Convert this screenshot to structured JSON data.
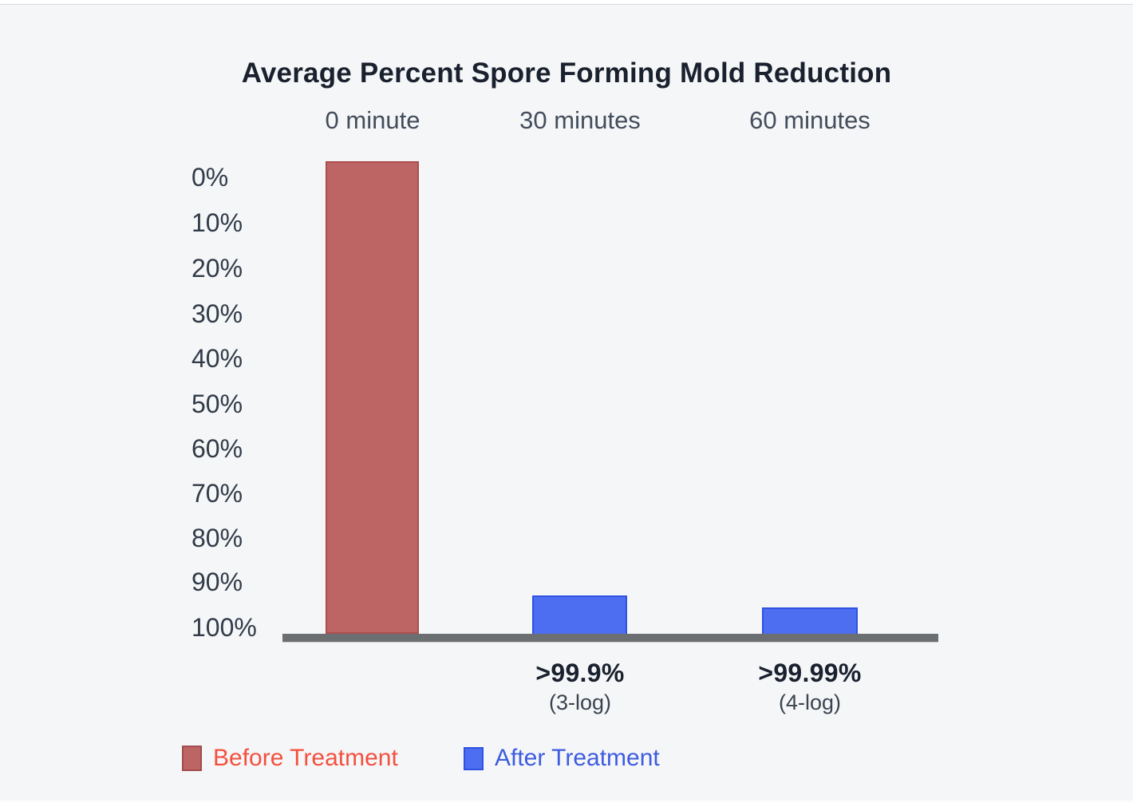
{
  "page": {
    "background_color": "#f5f6f8"
  },
  "chart_data": {
    "type": "bar",
    "title": "Average Percent Spore Forming Mold Reduction",
    "categories": [
      "0 minute",
      "30 minutes",
      "60 minutes"
    ],
    "y_ticks": [
      "0%",
      "10%",
      "20%",
      "30%",
      "40%",
      "50%",
      "60%",
      "70%",
      "80%",
      "90%",
      "100%"
    ],
    "y_axis": {
      "inverted": true,
      "range_top": "0%",
      "range_bottom": "100%",
      "grid": false
    },
    "series": [
      {
        "name": "Before Treatment",
        "color": "#bd6565",
        "border_color": "#a84a4a",
        "values_percent_reduction": [
          0,
          null,
          null
        ]
      },
      {
        "name": "After Treatment",
        "color": "#4d6ef0",
        "border_color": "#2c4ee0",
        "values_percent_reduction": [
          null,
          ">99.9",
          ">99.99"
        ]
      }
    ],
    "annotations": [
      {
        "category": "30 minutes",
        "value": ">99.9%",
        "log": "(3-log)"
      },
      {
        "category": "60 minutes",
        "value": ">99.99%",
        "log": "(4-log)"
      }
    ],
    "baseline_color": "#6c6f72",
    "legend": [
      {
        "label": "Before Treatment",
        "swatch_color": "#bd6565",
        "text_color": "#f4503e"
      },
      {
        "label": "After Treatment",
        "swatch_color": "#4d6ef0",
        "text_color": "#3d5ce0"
      }
    ],
    "legend_position": "bottom-left"
  }
}
